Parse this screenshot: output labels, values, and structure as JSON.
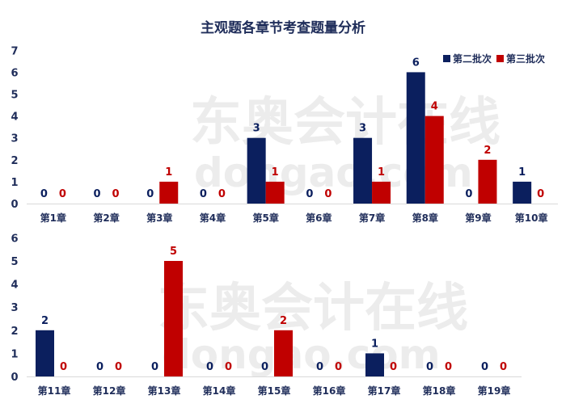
{
  "title": "主观题各章节考查题量分析",
  "watermark": {
    "brand": "东奥会计在线",
    "site": "www.dongao.com"
  },
  "colors": {
    "series1": "#0b1f5e",
    "series2": "#c00000",
    "axis": "#d9d9d9",
    "text": "#1f2d5a"
  },
  "legend": [
    {
      "label": "第二批次",
      "color": "#0b1f5e"
    },
    {
      "label": "第三批次",
      "color": "#c00000"
    }
  ],
  "chart_data": [
    {
      "type": "bar",
      "categories": [
        "第1章",
        "第2章",
        "第3章",
        "第4章",
        "第5章",
        "第6章",
        "第7章",
        "第8章",
        "第9章",
        "第10章"
      ],
      "series": [
        {
          "name": "第二批次",
          "values": [
            0,
            0,
            0,
            0,
            3,
            0,
            3,
            6,
            0,
            1
          ]
        },
        {
          "name": "第三批次",
          "values": [
            0,
            0,
            1,
            0,
            1,
            0,
            1,
            4,
            2,
            0
          ]
        }
      ],
      "yticks": [
        0,
        1,
        2,
        3,
        4,
        5,
        6,
        7
      ],
      "ylim": [
        0,
        7
      ],
      "grid": false,
      "legend_position": "top-right"
    },
    {
      "type": "bar",
      "categories": [
        "第11章",
        "第12章",
        "第13章",
        "第14章",
        "第15章",
        "第16章",
        "第17章",
        "第18章",
        "第19章"
      ],
      "series": [
        {
          "name": "第二批次",
          "values": [
            2,
            0,
            0,
            0,
            0,
            0,
            1,
            0,
            0
          ]
        },
        {
          "name": "第三批次",
          "values": [
            0,
            0,
            5,
            0,
            2,
            0,
            0,
            0,
            0
          ]
        }
      ],
      "yticks": [
        0,
        1,
        2,
        3,
        4,
        5,
        6
      ],
      "ylim": [
        0,
        6
      ],
      "grid": false
    }
  ]
}
